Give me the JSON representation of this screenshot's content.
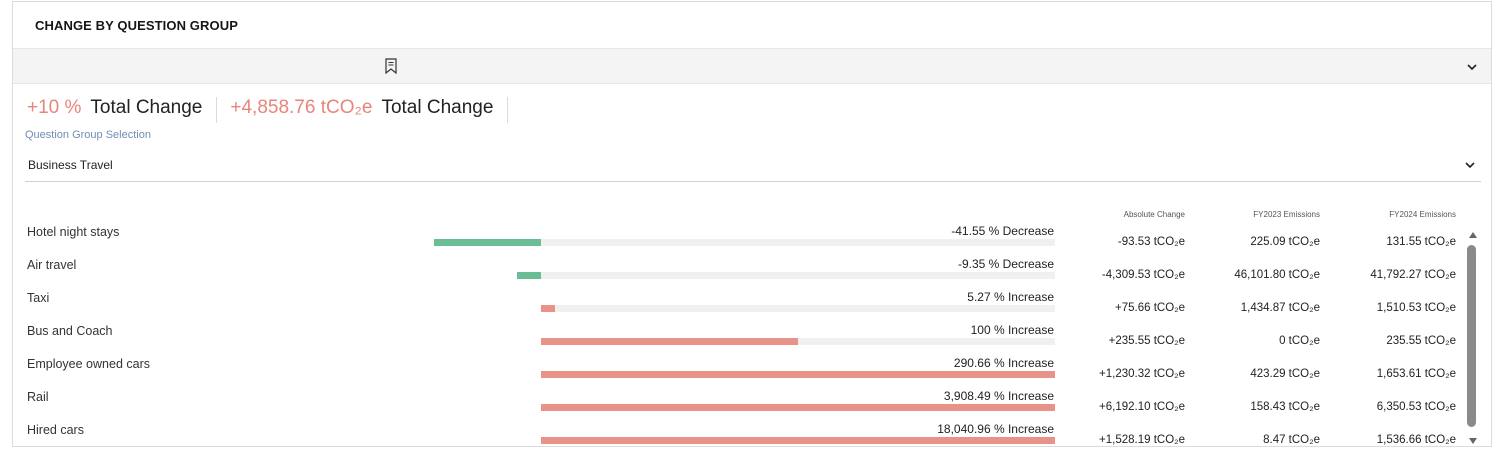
{
  "card": {
    "title": "CHANGE BY QUESTION GROUP"
  },
  "icons": {
    "bookmark": "bookmark-icon",
    "chevron": "chevron-down-icon"
  },
  "kpis": [
    {
      "value": "+10 %",
      "label": "Total Change"
    },
    {
      "value": "+4,858.76 tCO₂e",
      "label": "Total Change"
    }
  ],
  "selection": {
    "label": "Question Group Selection",
    "value": "Business Travel"
  },
  "table": {
    "headers": {
      "absolute": "Absolute Change",
      "fy2023": "FY2023 Emissions",
      "fy2024": "FY2024 Emissions"
    },
    "rows": [
      {
        "name": "Hotel night stays",
        "pct_label": "-41.55 % Decrease",
        "pct": -41.55,
        "abs": "-93.53 tCO₂e",
        "fy2023": "225.09 tCO₂e",
        "fy2024": "131.55 tCO₂e"
      },
      {
        "name": "Air travel",
        "pct_label": "-9.35 % Decrease",
        "pct": -9.35,
        "abs": "-4,309.53 tCO₂e",
        "fy2023": "46,101.80 tCO₂e",
        "fy2024": "41,792.27 tCO₂e"
      },
      {
        "name": "Taxi",
        "pct_label": "5.27 % Increase",
        "pct": 5.27,
        "abs": "+75.66 tCO₂e",
        "fy2023": "1,434.87 tCO₂e",
        "fy2024": "1,510.53 tCO₂e"
      },
      {
        "name": "Bus and Coach",
        "pct_label": "100 % Increase",
        "pct": 100,
        "abs": "+235.55 tCO₂e",
        "fy2023": "0 tCO₂e",
        "fy2024": "235.55 tCO₂e"
      },
      {
        "name": "Employee owned cars",
        "pct_label": "290.66 % Increase",
        "pct": 290.66,
        "abs": "+1,230.32 tCO₂e",
        "fy2023": "423.29 tCO₂e",
        "fy2024": "1,653.61 tCO₂e"
      },
      {
        "name": "Rail",
        "pct_label": "3,908.49 % Increase",
        "pct": 3908.49,
        "abs": "+6,192.10 tCO₂e",
        "fy2023": "158.43 tCO₂e",
        "fy2024": "6,350.53 tCO₂e"
      },
      {
        "name": "Hired cars",
        "pct_label": "18,040.96 % Increase",
        "pct": 18040.96,
        "abs": "+1,528.19 tCO₂e",
        "fy2023": "8.47 tCO₂e",
        "fy2024": "1,536.66 tCO₂e"
      }
    ]
  },
  "colors": {
    "accent": "#e8857a",
    "increase": "#e8928a",
    "decrease": "#6bbd96",
    "link": "#6f8fb3"
  }
}
